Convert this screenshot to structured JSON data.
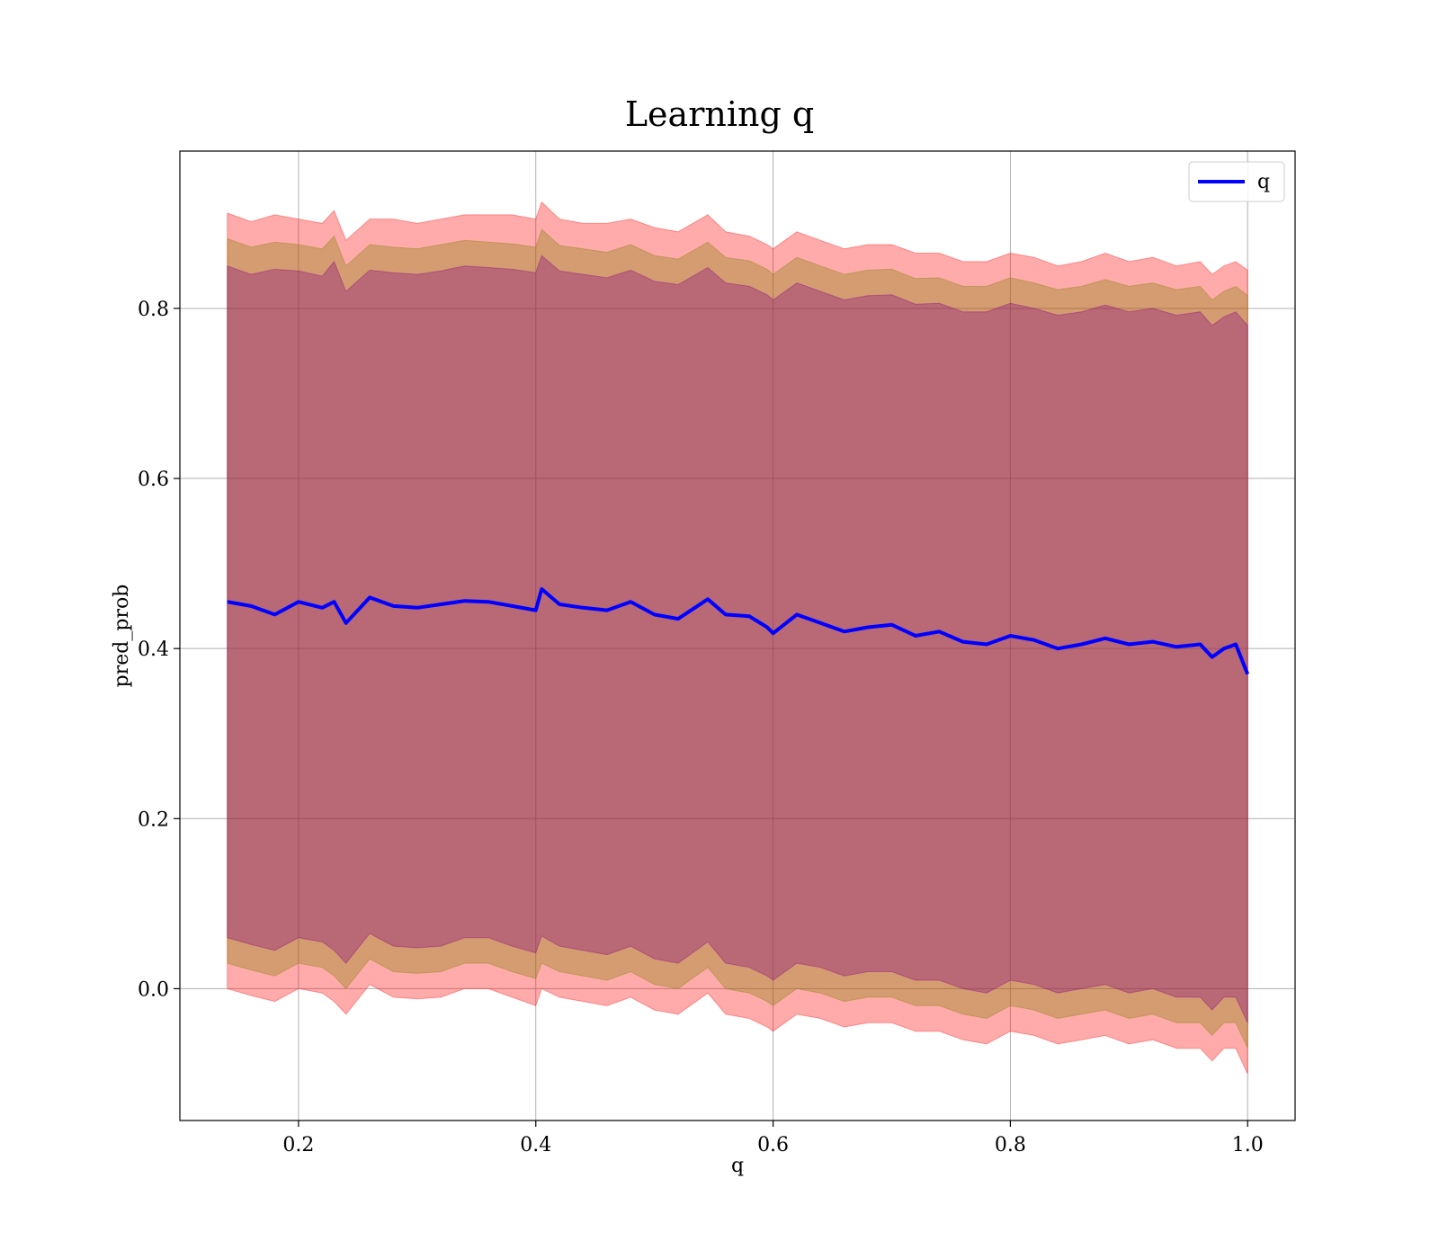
{
  "chart_data": {
    "type": "area",
    "title": "Learning q",
    "xlabel": "q",
    "ylabel": "pred_prob",
    "xlim": [
      0.1,
      1.04
    ],
    "ylim": [
      -0.155,
      0.985
    ],
    "xticks": [
      0.2,
      0.4,
      0.6,
      0.8,
      1.0
    ],
    "xtick_labels": [
      "0.2",
      "0.4",
      "0.6",
      "0.8",
      "1.0"
    ],
    "yticks": [
      0.0,
      0.2,
      0.4,
      0.6,
      0.8
    ],
    "ytick_labels": [
      "0.0",
      "0.2",
      "0.4",
      "0.6",
      "0.8"
    ],
    "grid": true,
    "legend_position": "upper right",
    "x": [
      0.14,
      0.16,
      0.18,
      0.2,
      0.22,
      0.23,
      0.24,
      0.26,
      0.28,
      0.3,
      0.32,
      0.34,
      0.36,
      0.38,
      0.4,
      0.405,
      0.42,
      0.44,
      0.46,
      0.48,
      0.5,
      0.52,
      0.545,
      0.56,
      0.58,
      0.595,
      0.6,
      0.62,
      0.64,
      0.66,
      0.68,
      0.7,
      0.72,
      0.74,
      0.76,
      0.78,
      0.8,
      0.82,
      0.84,
      0.86,
      0.88,
      0.9,
      0.92,
      0.94,
      0.96,
      0.97,
      0.98,
      0.99,
      1.0
    ],
    "series": [
      {
        "name": "q",
        "color": "#0000ff",
        "values": [
          0.455,
          0.45,
          0.44,
          0.455,
          0.448,
          0.455,
          0.43,
          0.46,
          0.45,
          0.448,
          0.452,
          0.456,
          0.455,
          0.45,
          0.445,
          0.47,
          0.452,
          0.448,
          0.445,
          0.455,
          0.44,
          0.435,
          0.458,
          0.44,
          0.438,
          0.425,
          0.418,
          0.44,
          0.43,
          0.42,
          0.425,
          0.428,
          0.415,
          0.42,
          0.408,
          0.405,
          0.415,
          0.41,
          0.4,
          0.405,
          0.412,
          0.405,
          0.408,
          0.402,
          0.405,
          0.39,
          0.4,
          0.405,
          0.37
        ]
      }
    ],
    "bands": [
      {
        "color": "#ff0000",
        "opacity": 0.33,
        "upper": [
          0.912,
          0.902,
          0.91,
          0.905,
          0.9,
          0.915,
          0.88,
          0.905,
          0.905,
          0.9,
          0.905,
          0.91,
          0.91,
          0.91,
          0.905,
          0.925,
          0.905,
          0.9,
          0.9,
          0.905,
          0.895,
          0.89,
          0.91,
          0.89,
          0.885,
          0.875,
          0.87,
          0.89,
          0.88,
          0.87,
          0.875,
          0.875,
          0.865,
          0.865,
          0.855,
          0.855,
          0.865,
          0.86,
          0.85,
          0.855,
          0.865,
          0.855,
          0.86,
          0.85,
          0.855,
          0.84,
          0.85,
          0.855,
          0.845
        ],
        "lower": [
          0.0,
          -0.008,
          -0.015,
          0.0,
          -0.005,
          -0.015,
          -0.03,
          0.005,
          -0.01,
          -0.012,
          -0.01,
          0.0,
          0.0,
          -0.01,
          -0.02,
          0.0,
          -0.01,
          -0.015,
          -0.02,
          -0.01,
          -0.025,
          -0.03,
          -0.005,
          -0.03,
          -0.035,
          -0.045,
          -0.05,
          -0.03,
          -0.035,
          -0.045,
          -0.04,
          -0.04,
          -0.05,
          -0.05,
          -0.06,
          -0.065,
          -0.05,
          -0.055,
          -0.065,
          -0.06,
          -0.055,
          -0.065,
          -0.06,
          -0.07,
          -0.07,
          -0.085,
          -0.07,
          -0.07,
          -0.1
        ]
      },
      {
        "color": "#808000",
        "opacity": 0.33,
        "upper": [
          0.882,
          0.872,
          0.878,
          0.875,
          0.87,
          0.885,
          0.85,
          0.875,
          0.872,
          0.87,
          0.875,
          0.88,
          0.878,
          0.876,
          0.872,
          0.893,
          0.874,
          0.87,
          0.866,
          0.875,
          0.862,
          0.858,
          0.878,
          0.86,
          0.856,
          0.846,
          0.84,
          0.86,
          0.85,
          0.84,
          0.845,
          0.846,
          0.835,
          0.836,
          0.826,
          0.826,
          0.836,
          0.83,
          0.822,
          0.826,
          0.834,
          0.826,
          0.83,
          0.822,
          0.826,
          0.81,
          0.82,
          0.826,
          0.815
        ],
        "lower": [
          0.03,
          0.022,
          0.015,
          0.03,
          0.025,
          0.015,
          0.0,
          0.035,
          0.02,
          0.018,
          0.02,
          0.03,
          0.03,
          0.02,
          0.012,
          0.03,
          0.02,
          0.015,
          0.01,
          0.02,
          0.005,
          0.0,
          0.025,
          0.0,
          -0.005,
          -0.015,
          -0.02,
          0.0,
          -0.005,
          -0.015,
          -0.01,
          -0.01,
          -0.02,
          -0.02,
          -0.03,
          -0.035,
          -0.02,
          -0.025,
          -0.035,
          -0.03,
          -0.025,
          -0.035,
          -0.03,
          -0.04,
          -0.04,
          -0.055,
          -0.04,
          -0.04,
          -0.07
        ]
      },
      {
        "color": "#800080",
        "opacity": 0.33,
        "upper": [
          0.85,
          0.84,
          0.846,
          0.844,
          0.838,
          0.855,
          0.82,
          0.845,
          0.842,
          0.84,
          0.844,
          0.85,
          0.848,
          0.846,
          0.842,
          0.862,
          0.844,
          0.84,
          0.836,
          0.845,
          0.832,
          0.828,
          0.848,
          0.83,
          0.826,
          0.816,
          0.81,
          0.83,
          0.82,
          0.81,
          0.815,
          0.816,
          0.805,
          0.806,
          0.796,
          0.796,
          0.806,
          0.8,
          0.792,
          0.796,
          0.804,
          0.796,
          0.8,
          0.792,
          0.796,
          0.78,
          0.79,
          0.796,
          0.78
        ],
        "lower": [
          0.06,
          0.052,
          0.045,
          0.06,
          0.055,
          0.045,
          0.03,
          0.065,
          0.05,
          0.048,
          0.05,
          0.06,
          0.06,
          0.05,
          0.042,
          0.062,
          0.05,
          0.045,
          0.04,
          0.05,
          0.035,
          0.03,
          0.055,
          0.03,
          0.025,
          0.015,
          0.01,
          0.03,
          0.025,
          0.015,
          0.02,
          0.02,
          0.01,
          0.01,
          0.0,
          -0.005,
          0.01,
          0.005,
          -0.005,
          0.0,
          0.005,
          -0.005,
          0.0,
          -0.01,
          -0.01,
          -0.025,
          -0.01,
          -0.01,
          -0.04
        ]
      }
    ]
  }
}
